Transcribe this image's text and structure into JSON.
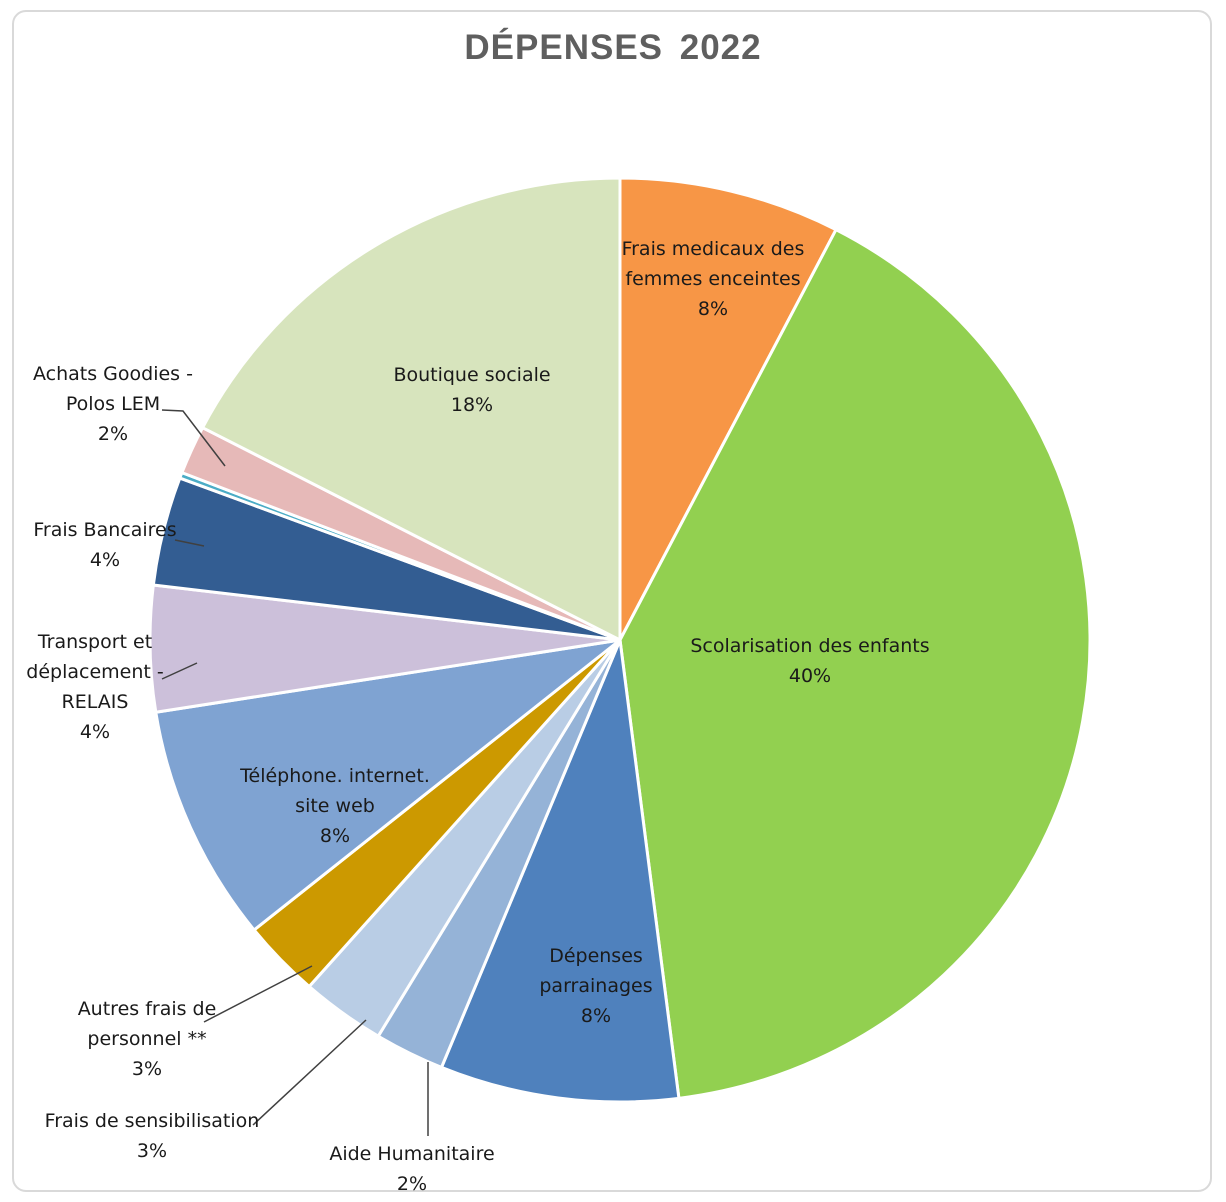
{
  "chart_data": {
    "type": "pie",
    "title": "DÉPENSES 2022",
    "slices": [
      {
        "name": "Frais medicaux des femmes enceintes",
        "label_lines": [
          "Frais medicaux des",
          "femmes enceintes"
        ],
        "pct_label": "8%",
        "value": 7.6,
        "color": "#F79646"
      },
      {
        "name": "Scolarisation des enfants",
        "label_lines": [
          "Scolarisation des enfants"
        ],
        "pct_label": "40%",
        "value": 40.4,
        "color": "#92D050"
      },
      {
        "name": "Dépenses parrainages",
        "label_lines": [
          "Dépenses",
          "parrainages"
        ],
        "pct_label": "8%",
        "value": 8.2,
        "color": "#4F81BD"
      },
      {
        "name": "Aide Humanitaire",
        "label_lines": [
          "Aide Humanitaire"
        ],
        "pct_label": "2%",
        "value": 2.4,
        "color": "#95B3D7"
      },
      {
        "name": "Frais de sensibilisation",
        "label_lines": [
          "Frais de sensibilisation"
        ],
        "pct_label": "3%",
        "value": 2.9,
        "color": "#B9CDE5"
      },
      {
        "name": "Autres frais de personnel **",
        "label_lines": [
          "Autres frais de",
          "personnel **"
        ],
        "pct_label": "3%",
        "value": 2.7,
        "color": "#CC9900"
      },
      {
        "name": "Téléphone. internet. site web",
        "label_lines": [
          "Téléphone. internet.",
          "site web"
        ],
        "pct_label": "8%",
        "value": 8.3,
        "color": "#7FA3D2"
      },
      {
        "name": "Transport et déplacement - RELAIS",
        "label_lines": [
          "Transport et",
          "déplacement -",
          "RELAIS"
        ],
        "pct_label": "4%",
        "value": 4.4,
        "color": "#CCC0DA"
      },
      {
        "name": "Frais Bancaires",
        "label_lines": [
          "Frais Bancaires"
        ],
        "pct_label": "4%",
        "value": 3.8,
        "color": "#335D92"
      },
      {
        "name": "",
        "label_lines": [],
        "pct_label": "",
        "value": 0.2,
        "color": "#4BACC6"
      },
      {
        "name": "Achats Goodies - Polos LEM",
        "label_lines": [
          "Achats Goodies -",
          "Polos LEM"
        ],
        "pct_label": "2%",
        "value": 1.7,
        "color": "#E6B9B8"
      },
      {
        "name": "Boutique sociale",
        "label_lines": [
          "Boutique sociale"
        ],
        "pct_label": "18%",
        "value": 17.4,
        "color": "#D7E4BD"
      }
    ]
  }
}
